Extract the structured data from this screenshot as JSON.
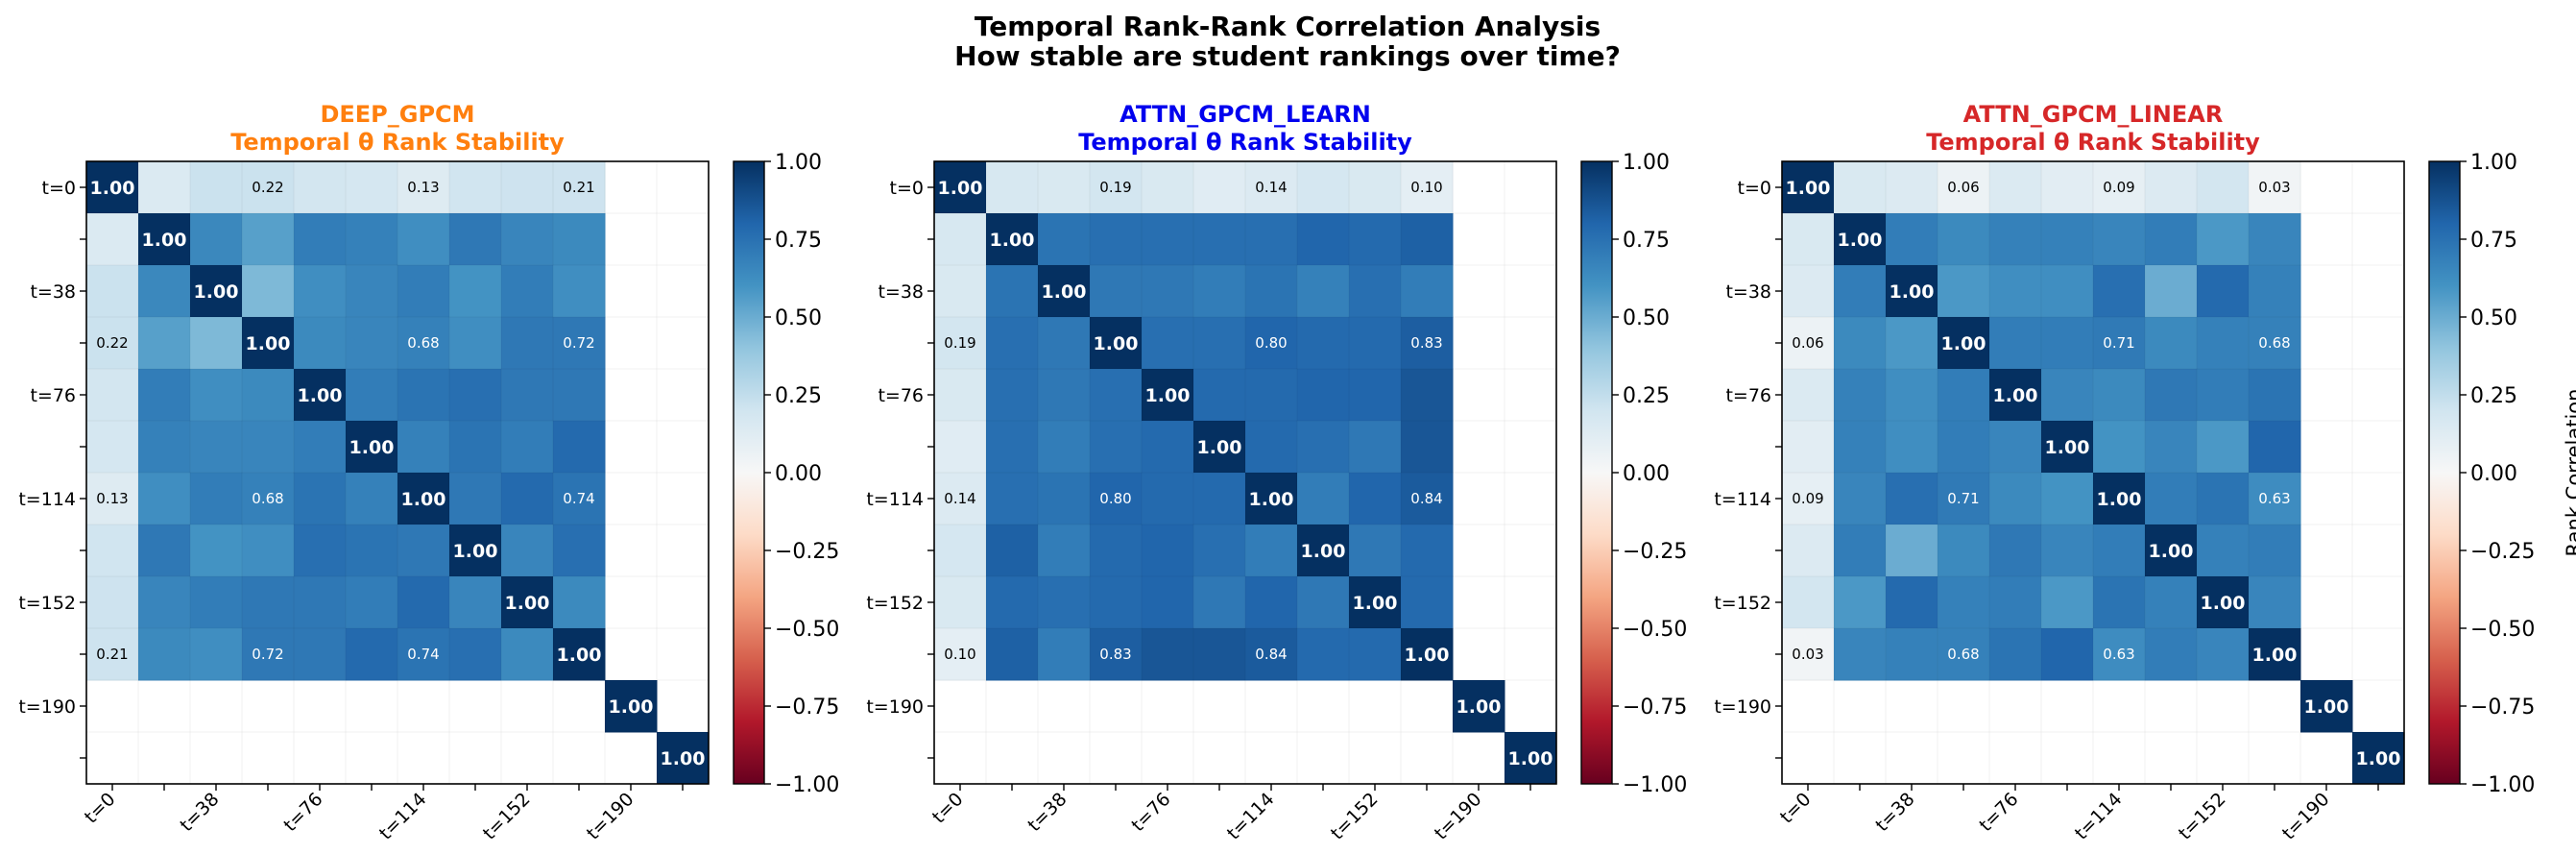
{
  "figure": {
    "title_line1": "Temporal Rank-Rank Correlation Analysis",
    "title_line2": "How stable are student rankings over time?"
  },
  "colorbar": {
    "label": "Rank Correlation",
    "ticks": [
      "1.00",
      "0.75",
      "0.50",
      "0.25",
      "0.00",
      "−0.25",
      "−0.50",
      "−0.75",
      "−1.00"
    ],
    "colormap": "RdBu",
    "range": [
      -1,
      1
    ]
  },
  "chart_data": [
    {
      "type": "heatmap",
      "title": "DEEP_GPCM",
      "subtitle": "Temporal θ Rank Stability",
      "title_color": "#ff7f0e",
      "x_tick_labels": [
        "t=0",
        "t=38",
        "t=76",
        "t=114",
        "t=152",
        "t=190"
      ],
      "y_tick_labels": [
        "t=0",
        "t=38",
        "t=76",
        "t=114",
        "t=152",
        "t=190"
      ],
      "grid": true,
      "vmin": -1,
      "vmax": 1,
      "matrix": [
        [
          1.0,
          0.15,
          0.22,
          0.22,
          0.19,
          0.18,
          0.13,
          0.2,
          0.21,
          0.21,
          null,
          null
        ],
        [
          0.15,
          1.0,
          0.65,
          0.55,
          0.7,
          0.68,
          0.62,
          0.72,
          0.66,
          0.64,
          null,
          null
        ],
        [
          0.22,
          0.65,
          1.0,
          0.45,
          0.62,
          0.66,
          0.7,
          0.6,
          0.7,
          0.62,
          null,
          null
        ],
        [
          0.22,
          0.55,
          0.45,
          1.0,
          0.64,
          0.66,
          0.68,
          0.62,
          0.72,
          0.72,
          null,
          null
        ],
        [
          0.19,
          0.7,
          0.62,
          0.64,
          1.0,
          0.7,
          0.74,
          0.76,
          0.72,
          0.72,
          null,
          null
        ],
        [
          0.18,
          0.68,
          0.66,
          0.66,
          0.7,
          1.0,
          0.68,
          0.74,
          0.7,
          0.78,
          null,
          null
        ],
        [
          0.13,
          0.62,
          0.7,
          0.68,
          0.74,
          0.68,
          1.0,
          0.72,
          0.78,
          0.74,
          null,
          null
        ],
        [
          0.2,
          0.72,
          0.6,
          0.62,
          0.76,
          0.74,
          0.72,
          1.0,
          0.66,
          0.76,
          null,
          null
        ],
        [
          0.21,
          0.66,
          0.7,
          0.72,
          0.72,
          0.7,
          0.78,
          0.66,
          1.0,
          0.64,
          null,
          null
        ],
        [
          0.21,
          0.64,
          0.62,
          0.72,
          0.72,
          0.78,
          0.74,
          0.76,
          0.64,
          1.0,
          null,
          null
        ],
        [
          null,
          null,
          null,
          null,
          null,
          null,
          null,
          null,
          null,
          null,
          1.0,
          null
        ],
        [
          null,
          null,
          null,
          null,
          null,
          null,
          null,
          null,
          null,
          null,
          null,
          1.0
        ]
      ],
      "annotations": [
        {
          "row": 0,
          "col": 0,
          "text": "1.00"
        },
        {
          "row": 0,
          "col": 3,
          "text": "0.22"
        },
        {
          "row": 0,
          "col": 6,
          "text": "0.13"
        },
        {
          "row": 0,
          "col": 9,
          "text": "0.21"
        },
        {
          "row": 1,
          "col": 1,
          "text": "1.00"
        },
        {
          "row": 2,
          "col": 2,
          "text": "1.00"
        },
        {
          "row": 3,
          "col": 0,
          "text": "0.22"
        },
        {
          "row": 3,
          "col": 3,
          "text": "1.00"
        },
        {
          "row": 3,
          "col": 6,
          "text": "0.68"
        },
        {
          "row": 3,
          "col": 9,
          "text": "0.72"
        },
        {
          "row": 4,
          "col": 4,
          "text": "1.00"
        },
        {
          "row": 5,
          "col": 5,
          "text": "1.00"
        },
        {
          "row": 6,
          "col": 0,
          "text": "0.13"
        },
        {
          "row": 6,
          "col": 3,
          "text": "0.68"
        },
        {
          "row": 6,
          "col": 6,
          "text": "1.00"
        },
        {
          "row": 6,
          "col": 9,
          "text": "0.74"
        },
        {
          "row": 7,
          "col": 7,
          "text": "1.00"
        },
        {
          "row": 8,
          "col": 8,
          "text": "1.00"
        },
        {
          "row": 9,
          "col": 0,
          "text": "0.21"
        },
        {
          "row": 9,
          "col": 3,
          "text": "0.72"
        },
        {
          "row": 9,
          "col": 6,
          "text": "0.74"
        },
        {
          "row": 9,
          "col": 9,
          "text": "1.00"
        },
        {
          "row": 10,
          "col": 10,
          "text": "1.00"
        },
        {
          "row": 11,
          "col": 11,
          "text": "1.00"
        }
      ]
    },
    {
      "type": "heatmap",
      "title": "ATTN_GPCM_LEARN",
      "subtitle": "Temporal θ Rank Stability",
      "title_color": "#0000ee",
      "x_tick_labels": [
        "t=0",
        "t=38",
        "t=76",
        "t=114",
        "t=152",
        "t=190"
      ],
      "y_tick_labels": [
        "t=0",
        "t=38",
        "t=76",
        "t=114",
        "t=152",
        "t=190"
      ],
      "grid": true,
      "vmin": -1,
      "vmax": 1,
      "matrix": [
        [
          1.0,
          0.17,
          0.16,
          0.19,
          0.16,
          0.12,
          0.14,
          0.18,
          0.16,
          0.1,
          null,
          null
        ],
        [
          0.17,
          1.0,
          0.74,
          0.76,
          0.76,
          0.76,
          0.76,
          0.8,
          0.78,
          0.82,
          null,
          null
        ],
        [
          0.16,
          0.74,
          1.0,
          0.72,
          0.72,
          0.7,
          0.74,
          0.68,
          0.76,
          0.7,
          null,
          null
        ],
        [
          0.19,
          0.76,
          0.72,
          1.0,
          0.76,
          0.76,
          0.8,
          0.78,
          0.78,
          0.83,
          null,
          null
        ],
        [
          0.16,
          0.76,
          0.72,
          0.76,
          1.0,
          0.78,
          0.78,
          0.8,
          0.8,
          0.86,
          null,
          null
        ],
        [
          0.12,
          0.76,
          0.7,
          0.76,
          0.78,
          1.0,
          0.78,
          0.76,
          0.72,
          0.86,
          null,
          null
        ],
        [
          0.14,
          0.76,
          0.74,
          0.8,
          0.78,
          0.78,
          1.0,
          0.7,
          0.8,
          0.84,
          null,
          null
        ],
        [
          0.18,
          0.82,
          0.7,
          0.78,
          0.8,
          0.76,
          0.7,
          1.0,
          0.72,
          0.78,
          null,
          null
        ],
        [
          0.16,
          0.78,
          0.76,
          0.78,
          0.8,
          0.72,
          0.8,
          0.72,
          1.0,
          0.78,
          null,
          null
        ],
        [
          0.1,
          0.82,
          0.7,
          0.83,
          0.86,
          0.86,
          0.84,
          0.78,
          0.78,
          1.0,
          null,
          null
        ],
        [
          null,
          null,
          null,
          null,
          null,
          null,
          null,
          null,
          null,
          null,
          1.0,
          null
        ],
        [
          null,
          null,
          null,
          null,
          null,
          null,
          null,
          null,
          null,
          null,
          null,
          1.0
        ]
      ],
      "annotations": [
        {
          "row": 0,
          "col": 0,
          "text": "1.00"
        },
        {
          "row": 0,
          "col": 3,
          "text": "0.19"
        },
        {
          "row": 0,
          "col": 6,
          "text": "0.14"
        },
        {
          "row": 0,
          "col": 9,
          "text": "0.10"
        },
        {
          "row": 1,
          "col": 1,
          "text": "1.00"
        },
        {
          "row": 2,
          "col": 2,
          "text": "1.00"
        },
        {
          "row": 3,
          "col": 0,
          "text": "0.19"
        },
        {
          "row": 3,
          "col": 3,
          "text": "1.00"
        },
        {
          "row": 3,
          "col": 6,
          "text": "0.80"
        },
        {
          "row": 3,
          "col": 9,
          "text": "0.83"
        },
        {
          "row": 4,
          "col": 4,
          "text": "1.00"
        },
        {
          "row": 5,
          "col": 5,
          "text": "1.00"
        },
        {
          "row": 6,
          "col": 0,
          "text": "0.14"
        },
        {
          "row": 6,
          "col": 3,
          "text": "0.80"
        },
        {
          "row": 6,
          "col": 6,
          "text": "1.00"
        },
        {
          "row": 6,
          "col": 9,
          "text": "0.84"
        },
        {
          "row": 7,
          "col": 7,
          "text": "1.00"
        },
        {
          "row": 8,
          "col": 8,
          "text": "1.00"
        },
        {
          "row": 9,
          "col": 0,
          "text": "0.10"
        },
        {
          "row": 9,
          "col": 3,
          "text": "0.83"
        },
        {
          "row": 9,
          "col": 6,
          "text": "0.84"
        },
        {
          "row": 9,
          "col": 9,
          "text": "1.00"
        },
        {
          "row": 10,
          "col": 10,
          "text": "1.00"
        },
        {
          "row": 11,
          "col": 11,
          "text": "1.00"
        }
      ]
    },
    {
      "type": "heatmap",
      "title": "ATTN_GPCM_LINEAR",
      "subtitle": "Temporal θ Rank Stability",
      "title_color": "#d62728",
      "x_tick_labels": [
        "t=0",
        "t=38",
        "t=76",
        "t=114",
        "t=152",
        "t=190"
      ],
      "y_tick_labels": [
        "t=0",
        "t=38",
        "t=76",
        "t=114",
        "t=152",
        "t=190"
      ],
      "grid": true,
      "vmin": -1,
      "vmax": 1,
      "matrix": [
        [
          1.0,
          0.16,
          0.14,
          0.06,
          0.15,
          0.11,
          0.09,
          0.14,
          0.19,
          0.03,
          null,
          null
        ],
        [
          0.16,
          1.0,
          0.7,
          0.64,
          0.68,
          0.68,
          0.66,
          0.7,
          0.58,
          0.66,
          null,
          null
        ],
        [
          0.14,
          0.7,
          1.0,
          0.58,
          0.62,
          0.62,
          0.76,
          0.5,
          0.78,
          0.68,
          null,
          null
        ],
        [
          0.06,
          0.64,
          0.58,
          1.0,
          0.7,
          0.7,
          0.71,
          0.64,
          0.68,
          0.68,
          null,
          null
        ],
        [
          0.15,
          0.68,
          0.62,
          0.7,
          1.0,
          0.66,
          0.64,
          0.72,
          0.7,
          0.74,
          null,
          null
        ],
        [
          0.11,
          0.68,
          0.62,
          0.7,
          0.66,
          1.0,
          0.6,
          0.66,
          0.58,
          0.8,
          null,
          null
        ],
        [
          0.09,
          0.66,
          0.76,
          0.71,
          0.64,
          0.6,
          1.0,
          0.7,
          0.74,
          0.63,
          null,
          null
        ],
        [
          0.14,
          0.7,
          0.5,
          0.64,
          0.72,
          0.66,
          0.7,
          1.0,
          0.68,
          0.7,
          null,
          null
        ],
        [
          0.19,
          0.58,
          0.78,
          0.68,
          0.7,
          0.58,
          0.74,
          0.68,
          1.0,
          0.66,
          null,
          null
        ],
        [
          0.03,
          0.66,
          0.68,
          0.68,
          0.74,
          0.8,
          0.63,
          0.7,
          0.66,
          1.0,
          null,
          null
        ],
        [
          null,
          null,
          null,
          null,
          null,
          null,
          null,
          null,
          null,
          null,
          1.0,
          null
        ],
        [
          null,
          null,
          null,
          null,
          null,
          null,
          null,
          null,
          null,
          null,
          null,
          1.0
        ]
      ],
      "annotations": [
        {
          "row": 0,
          "col": 0,
          "text": "1.00"
        },
        {
          "row": 0,
          "col": 3,
          "text": "0.06"
        },
        {
          "row": 0,
          "col": 6,
          "text": "0.09"
        },
        {
          "row": 0,
          "col": 9,
          "text": "0.03"
        },
        {
          "row": 1,
          "col": 1,
          "text": "1.00"
        },
        {
          "row": 2,
          "col": 2,
          "text": "1.00"
        },
        {
          "row": 3,
          "col": 0,
          "text": "0.06"
        },
        {
          "row": 3,
          "col": 3,
          "text": "1.00"
        },
        {
          "row": 3,
          "col": 6,
          "text": "0.71"
        },
        {
          "row": 3,
          "col": 9,
          "text": "0.68"
        },
        {
          "row": 4,
          "col": 4,
          "text": "1.00"
        },
        {
          "row": 5,
          "col": 5,
          "text": "1.00"
        },
        {
          "row": 6,
          "col": 0,
          "text": "0.09"
        },
        {
          "row": 6,
          "col": 3,
          "text": "0.71"
        },
        {
          "row": 6,
          "col": 6,
          "text": "1.00"
        },
        {
          "row": 6,
          "col": 9,
          "text": "0.63"
        },
        {
          "row": 7,
          "col": 7,
          "text": "1.00"
        },
        {
          "row": 8,
          "col": 8,
          "text": "1.00"
        },
        {
          "row": 9,
          "col": 0,
          "text": "0.03"
        },
        {
          "row": 9,
          "col": 3,
          "text": "0.68"
        },
        {
          "row": 9,
          "col": 6,
          "text": "0.63"
        },
        {
          "row": 9,
          "col": 9,
          "text": "1.00"
        },
        {
          "row": 10,
          "col": 10,
          "text": "1.00"
        },
        {
          "row": 11,
          "col": 11,
          "text": "1.00"
        }
      ]
    }
  ]
}
